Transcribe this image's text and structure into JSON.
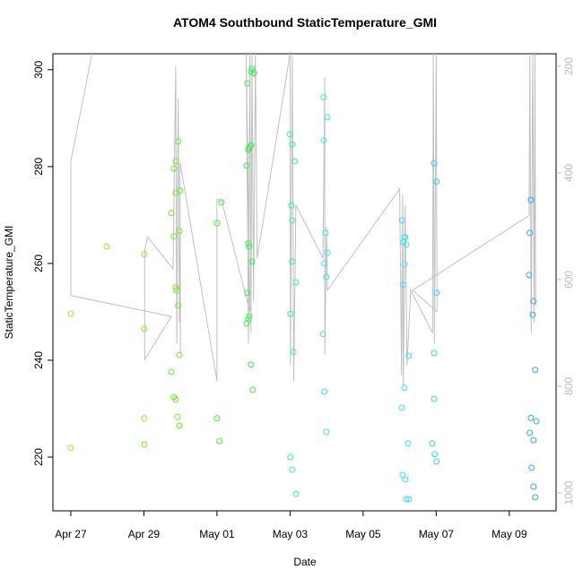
{
  "chart_data": {
    "type": "scatter",
    "title": "ATOM4 Southbound StaticTemperature_GMI",
    "x_label": "Date",
    "y_label": "StaticTemperature_GMI",
    "xlim": [
      -0.49,
      13.28
    ],
    "xticks": [
      {
        "value": 0,
        "label": "Apr 27"
      },
      {
        "value": 2,
        "label": "Apr 29"
      },
      {
        "value": 4,
        "label": "May 01"
      },
      {
        "value": 6,
        "label": "May 03"
      },
      {
        "value": 8,
        "label": "May 05"
      },
      {
        "value": 10,
        "label": "May 07"
      },
      {
        "value": 12,
        "label": "May 09"
      }
    ],
    "ylim": [
      208.9,
      303.3
    ],
    "yticks": [
      220,
      240,
      260,
      280,
      300
    ],
    "y2lim": [
      1033.6,
      176.5
    ],
    "y2ticks": [
      200,
      400,
      600,
      800,
      1000
    ],
    "series": [
      {
        "color": "#a8e61e",
        "x": [
          0,
          0,
          0.98
        ],
        "values": [
          249.6,
          221.9,
          263.5
        ]
      },
      {
        "color": "#88ee1e",
        "x": [
          2.01,
          2.01,
          2.01,
          2.01
        ],
        "values": [
          261.9,
          246.5,
          228,
          222.6
        ]
      },
      {
        "color": "#66f020",
        "x": [
          2.87,
          2.82,
          2.87,
          2.75,
          2.82,
          2.97,
          2.99,
          2.94,
          2.87,
          2.9,
          2.94,
          2.97,
          2.75,
          2.82,
          2.87,
          2.92,
          2.97
        ],
        "values": [
          281.1,
          279.6,
          274.6,
          270.4,
          265.6,
          266.7,
          275,
          285.2,
          255,
          254.4,
          251.3,
          241.1,
          237.6,
          232.4,
          231.9,
          228.3,
          226.5
        ]
      },
      {
        "color": "#44f030",
        "x": [
          4.0,
          4.12,
          4.0,
          4.07
        ],
        "values": [
          268.3,
          272.6,
          228,
          223.3
        ]
      },
      {
        "color": "#30f048",
        "x": [
          4.83,
          4.93,
          4.96,
          5.01,
          4.93,
          4.88,
          4.86,
          4.81,
          4.86,
          4.88,
          4.96,
          4.83,
          4.88,
          4.86,
          4.81,
          4.93,
          4.98
        ],
        "values": [
          297.2,
          299.6,
          300.2,
          299.3,
          284.4,
          283.9,
          283.5,
          280.2,
          264.1,
          263.5,
          260.4,
          253.9,
          249.1,
          248.5,
          247.6,
          239.1,
          233.9
        ]
      },
      {
        "color": "#30f0b0",
        "x": [
          5.99,
          6.06,
          6.13,
          6.04,
          6.06,
          6.06,
          6.16,
          6.01,
          6.09,
          6.01,
          6.06,
          6.16
        ],
        "values": [
          286.7,
          284.6,
          281.1,
          272,
          268.9,
          260.4,
          256.1,
          249.6,
          241.7,
          220,
          217.4,
          212.4
        ]
      },
      {
        "color": "#30f0d8",
        "x": [
          6.92,
          6.92,
          7.02,
          6.97,
          7.02,
          6.94,
          6.99,
          6.9,
          6.94,
          6.99
        ],
        "values": [
          294.3,
          285.4,
          290.2,
          266.3,
          262.2,
          260,
          257.2,
          245.4,
          233.5,
          225.2
        ]
      },
      {
        "color": "#30e8f0",
        "x": [
          9.06,
          9.15,
          9.1,
          9.18,
          9.13,
          9.13,
          9.1,
          9.25,
          9.13,
          9.06,
          9.23,
          9.08,
          9.15,
          9.18,
          9.25
        ],
        "values": [
          268.9,
          265.4,
          264.4,
          263.9,
          265.4,
          259.8,
          255.6,
          240.9,
          234.3,
          230.2,
          222.8,
          216.3,
          215.4,
          211.3,
          211.3
        ]
      },
      {
        "color": "#30d4f0",
        "x": [
          9.94,
          10.01,
          10.01,
          9.94,
          9.94,
          9.89,
          9.96,
          10.01
        ],
        "values": [
          280.7,
          276.9,
          253.9,
          241.5,
          232,
          222.8,
          220.6,
          219.1
        ]
      },
      {
        "color": "#30a8f0",
        "x": [
          12.59,
          12.56,
          12.54,
          12.66,
          12.64,
          12.71,
          12.59,
          12.74,
          12.56,
          12.66,
          12.61,
          12.66,
          12.71
        ],
        "values": [
          273.1,
          266.3,
          257.6,
          252.2,
          249.4,
          238,
          228.1,
          227.4,
          225,
          223.5,
          217.8,
          213.9,
          211.7
        ]
      },
      {
        "type": "line",
        "axis": "y2",
        "color": "#c0c0c0",
        "x": [
          0.58,
          0,
          0,
          2.75,
          2.02,
          2.02,
          2.1,
          2.8,
          2.87,
          2.9,
          2.94,
          2.97,
          2.99,
          3.0,
          2.99,
          4.0,
          4.0,
          4.12,
          4.9,
          4.8,
          4.86,
          4.9,
          4.93,
          4.96,
          5.0,
          5.05,
          5.1,
          6.0,
          6.01,
          6.06,
          6.1,
          6.16,
          6.9,
          6.95,
          6.95,
          7.0,
          7.02,
          9.0,
          9.05,
          9.08,
          9.1,
          9.15,
          9.2,
          9.3,
          9.9,
          9.92,
          9.95,
          10.0,
          10.02,
          9.35,
          12.54,
          12.56,
          12.6,
          12.64,
          12.68,
          12.7,
          12.72
        ],
        "values": [
          176,
          378,
          630,
          669,
          750,
          545,
          520,
          580,
          200,
          720,
          260,
          680,
          520,
          740,
          380,
          790,
          450,
          450,
          660,
          176,
          720,
          176,
          700,
          176,
          640,
          176,
          560,
          176,
          760,
          176,
          790,
          460,
          560,
          220,
          740,
          500,
          620,
          430,
          780,
          440,
          800,
          460,
          760,
          620,
          700,
          176,
          720,
          176,
          660,
          620,
          480,
          176,
          700,
          176,
          680,
          176,
          650
        ]
      }
    ]
  }
}
